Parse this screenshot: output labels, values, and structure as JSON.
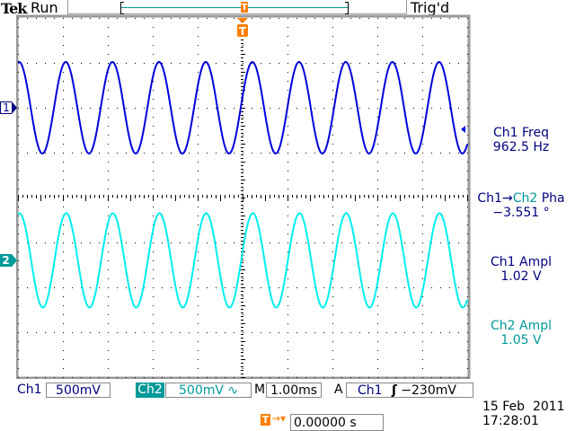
{
  "header": {
    "brand": "Tek",
    "acq_state": "Run",
    "trigger_status": "Trig'd"
  },
  "colors": {
    "ch1": "#0000dd",
    "ch2": "#00eeee",
    "ch2_label": "#009999",
    "trigger": "#ff7f00",
    "ch1_text": "#000080"
  },
  "channels": [
    {
      "marker": "1",
      "label": "Ch1",
      "scale": "500mV"
    },
    {
      "marker": "2",
      "label": "Ch2",
      "scale": "500mV",
      "coupling_icon": "ac-coupling-icon",
      "coupling_glyph": "∿"
    }
  ],
  "timebase": {
    "prefix": "M",
    "value": "1.00ms"
  },
  "trigger": {
    "mode": "A",
    "source": "Ch1",
    "slope_icon": "rising-edge-icon",
    "slope_glyph": "ʃ",
    "level": "−230mV",
    "marker": "T",
    "position_value": "0.00000 s"
  },
  "measurements": [
    {
      "title": "Ch1 Freq",
      "value": "962.5 Hz"
    },
    {
      "title_a": "Ch1→",
      "title_b": "Ch2",
      "title_c": " Pha",
      "value": "−3.551 °"
    },
    {
      "title": "Ch1 Ampl",
      "value": "1.02 V"
    },
    {
      "title": "Ch2 Ampl",
      "value": "1.05 V"
    }
  ],
  "datetime": {
    "date": "15 Feb  2011",
    "time": "17:28:01"
  },
  "signal": {
    "frequency_hz": 962.5,
    "ch1_amplitude_v": 1.02,
    "ch2_amplitude_v": 1.05,
    "phase_deg": -3.551,
    "volts_per_div": 0.5,
    "seconds_per_div": 0.001
  }
}
